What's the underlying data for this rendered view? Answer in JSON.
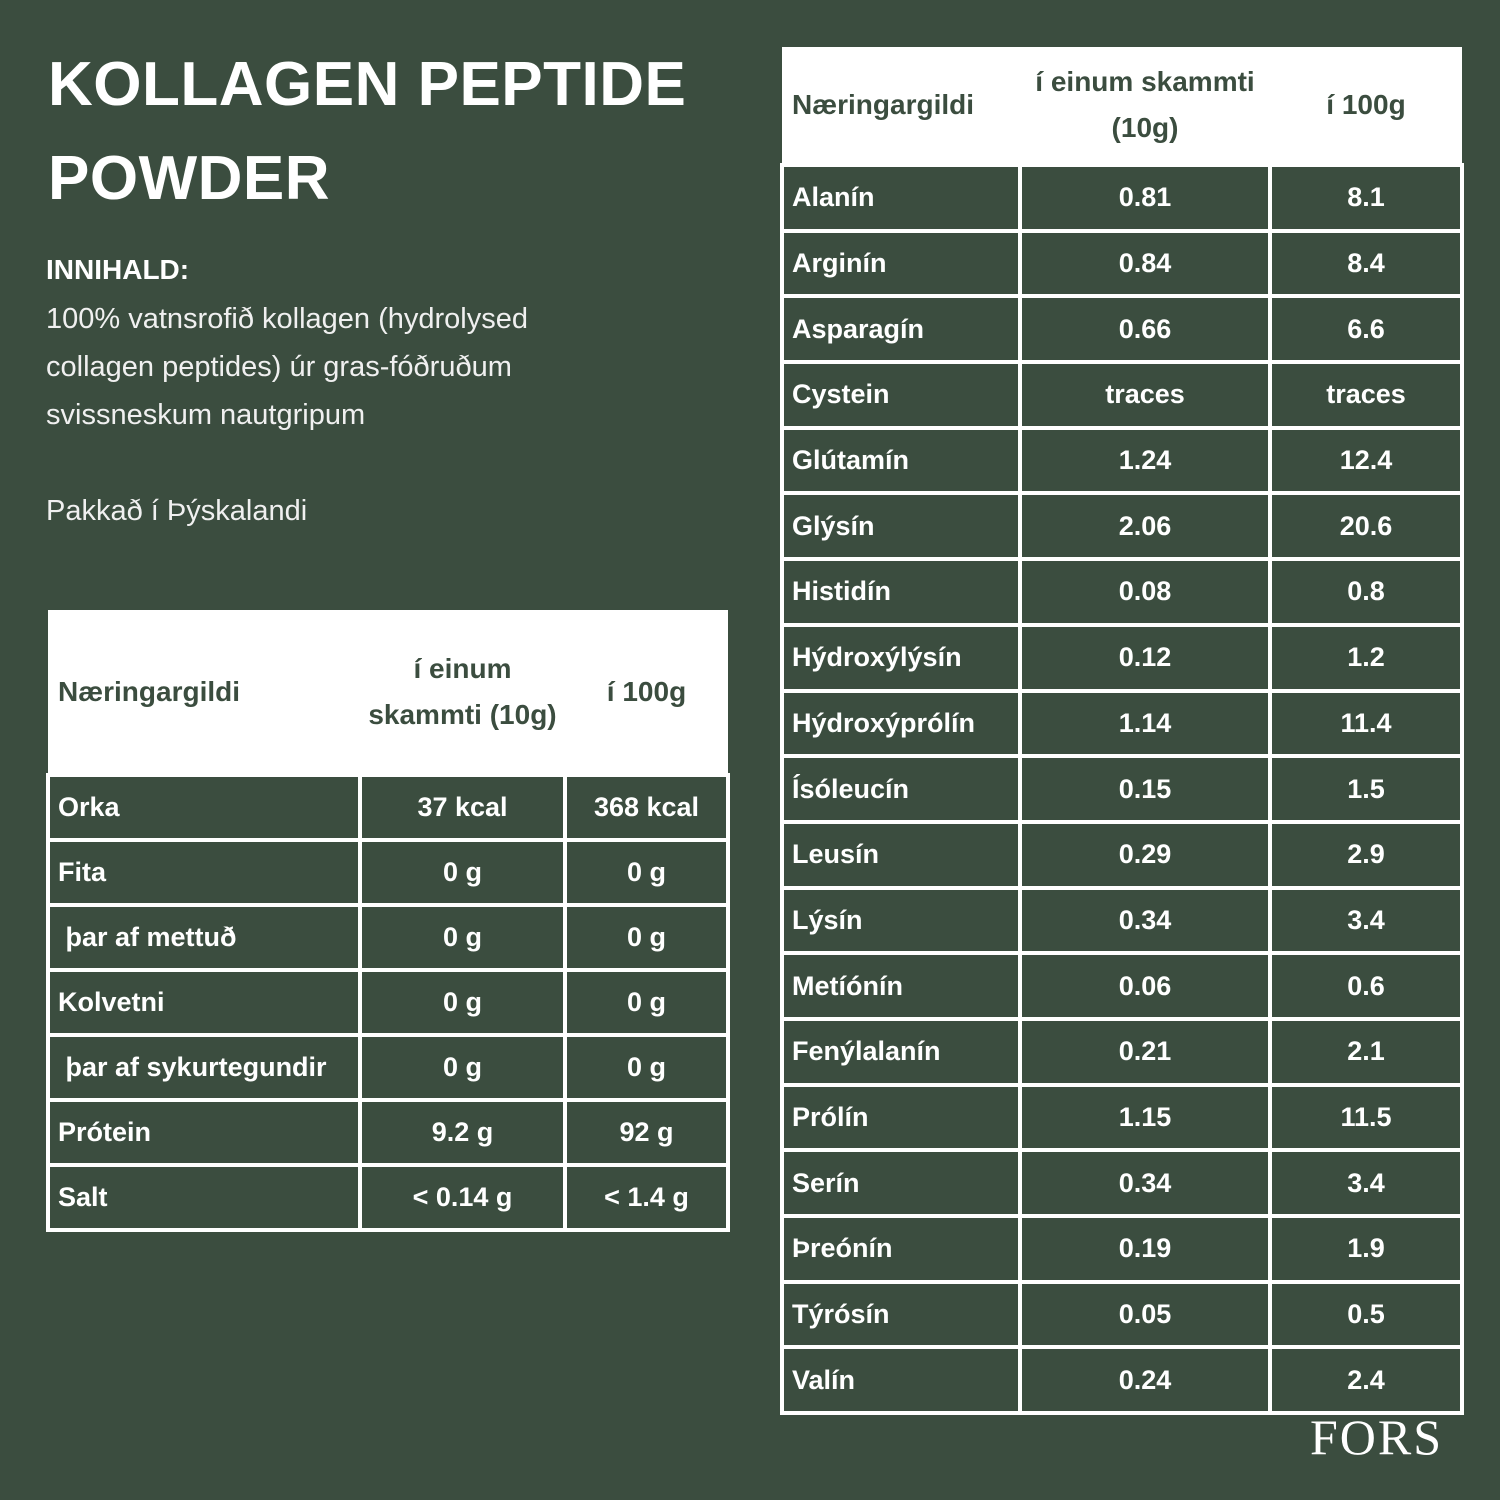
{
  "header": {
    "title_line1": "KOLLAGEN PEPTIDE",
    "title_line2": "POWDER"
  },
  "ingredients": {
    "label": "INNIHALD:",
    "text": "100% vatnsrofið kollagen (hydrolysed collagen peptides) úr gras-fóðruðum svissneskum nautgripum",
    "packed": "Pakkað í Þýskalandi"
  },
  "nutrition_table": {
    "columns": [
      "Næringargildi",
      "í einum skammti (10g)",
      "í 100g"
    ],
    "rows": [
      [
        "Orka",
        "37 kcal",
        "368 kcal"
      ],
      [
        "Fita",
        "0 g",
        "0 g"
      ],
      [
        " þar af mettuð",
        "0 g",
        "0 g"
      ],
      [
        "Kolvetni",
        "0 g",
        "0 g"
      ],
      [
        " þar af sykurtegundir",
        "0 g",
        "0 g"
      ],
      [
        "Prótein",
        "9.2 g",
        "92 g"
      ],
      [
        "Salt",
        "< 0.14 g",
        "< 1.4 g"
      ]
    ]
  },
  "amino_table": {
    "columns": [
      "Næringargildi",
      "í einum skammti (10g)",
      "í 100g"
    ],
    "rows": [
      [
        "Alanín",
        "0.81",
        "8.1"
      ],
      [
        "Arginín",
        "0.84",
        "8.4"
      ],
      [
        "Asparagín",
        "0.66",
        "6.6"
      ],
      [
        "Cystein",
        "traces",
        "traces"
      ],
      [
        "Glútamín",
        "1.24",
        "12.4"
      ],
      [
        "Glýsín",
        "2.06",
        "20.6"
      ],
      [
        "Histidín",
        "0.08",
        "0.8"
      ],
      [
        "Hýdroxýlýsín",
        "0.12",
        "1.2"
      ],
      [
        "Hýdroxýprólín",
        "1.14",
        "11.4"
      ],
      [
        "Ísóleucín",
        "0.15",
        "1.5"
      ],
      [
        "Leusín",
        "0.29",
        "2.9"
      ],
      [
        "Lýsín",
        "0.34",
        "3.4"
      ],
      [
        "Metíónín",
        "0.06",
        "0.6"
      ],
      [
        "Fenýlalanín",
        "0.21",
        "2.1"
      ],
      [
        "Prólín",
        "1.15",
        "11.5"
      ],
      [
        "Serín",
        "0.34",
        "3.4"
      ],
      [
        "Þreónín",
        "0.19",
        "1.9"
      ],
      [
        "Týrósín",
        "0.05",
        "0.5"
      ],
      [
        "Valín",
        "0.24",
        "2.4"
      ]
    ]
  },
  "brand": {
    "logo": "FORS"
  }
}
